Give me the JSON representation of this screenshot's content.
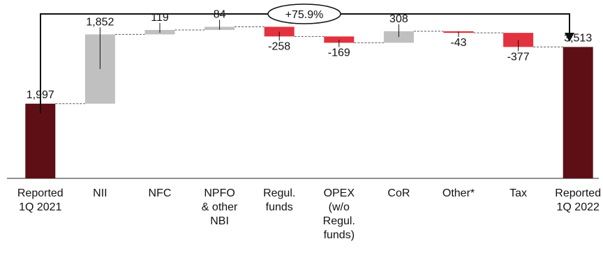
{
  "chart_data": {
    "type": "bar",
    "subtype": "waterfall",
    "categories": [
      [
        "Reported",
        "1Q 2021"
      ],
      [
        "NII"
      ],
      [
        "NFC"
      ],
      [
        "NPFO",
        "& other",
        "NBI"
      ],
      [
        "Regul.",
        "funds"
      ],
      [
        "OPEX",
        "(w/o",
        "Regul.",
        "funds)"
      ],
      [
        "CoR"
      ],
      [
        "Other*"
      ],
      [
        "Tax"
      ],
      [
        "Reported",
        "1Q 2022"
      ]
    ],
    "values": [
      1997,
      1852,
      119,
      84,
      -258,
      -169,
      308,
      -43,
      -377,
      3513
    ],
    "bar_kinds": [
      "total",
      "delta",
      "delta",
      "delta",
      "delta",
      "delta",
      "delta",
      "delta",
      "delta",
      "total"
    ],
    "value_labels": [
      "1,997",
      "1,852",
      "119",
      "84",
      "-258",
      "-169",
      "308",
      "-43",
      "-377",
      "3,513"
    ],
    "growth_annotation": "+75.9%",
    "ylim": [
      0,
      3800
    ],
    "colors": {
      "total": "#5e0f16",
      "increase": "#c0c0c0",
      "decrease": "#e3323f",
      "connector": "#555555",
      "arrow": "#111111"
    }
  }
}
